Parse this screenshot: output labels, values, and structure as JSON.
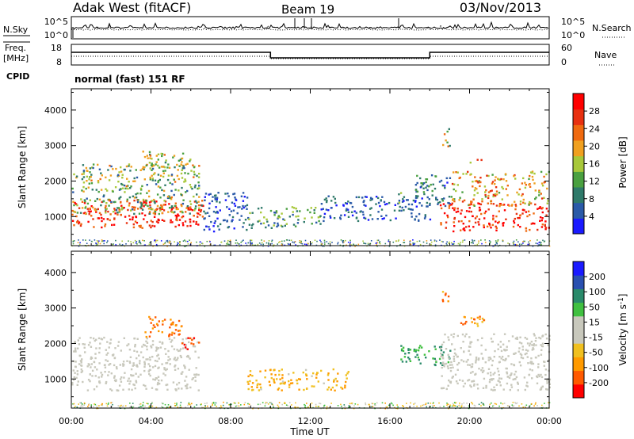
{
  "header": {
    "title": "Adak West (fitACF)",
    "beam": "Beam 19",
    "date": "03/Nov/2013"
  },
  "time_axis": {
    "ticks": [
      "00:00",
      "04:00",
      "08:00",
      "12:00",
      "16:00",
      "20:00",
      "00:00"
    ],
    "label": "Time UT"
  },
  "nsky_panel": {
    "left_label": "N.Sky",
    "left_ticks": [
      "10^5",
      "10^0"
    ],
    "right_label": "N.Search",
    "right_ticks": [
      "10^5",
      "10^0"
    ]
  },
  "freq_panel": {
    "left_label_line1": "Freq.",
    "left_label_line2": "[MHz]",
    "left_ticks": [
      "18",
      "8"
    ],
    "right_label": "Nave",
    "right_ticks": [
      "60",
      "0"
    ]
  },
  "cpid": {
    "label": "CPID",
    "value": "normal (fast) 151 RF"
  },
  "colors": {
    "power_scale": [
      "#1a1aff",
      "#2a5aa8",
      "#2f7a6a",
      "#4aa040",
      "#a8c83a",
      "#f0a020",
      "#f06a10",
      "#e83010",
      "#ff0000"
    ],
    "velocity_scale": [
      "#ff0000",
      "#ff5a00",
      "#ff9a00",
      "#f0c020",
      "#c8c8bc",
      "#c8c8bc",
      "#40c040",
      "#2a8a6a",
      "#2a50b0",
      "#1a1aff"
    ],
    "ground_scatter": "#c8c8bc"
  },
  "chart_data": [
    {
      "type": "heatmap",
      "name": "power",
      "ylabel": "Slant Range [km]",
      "yticks": [
        "1000",
        "2000",
        "3000",
        "4000"
      ],
      "ylim": [
        180,
        4600
      ],
      "xlim": [
        0,
        24
      ],
      "colorbar": {
        "label": "Power [dB]",
        "ticks": [
          "4",
          "8",
          "12",
          "16",
          "20",
          "24",
          "28"
        ],
        "range": [
          0,
          32
        ]
      },
      "echo_regions": [
        {
          "t0": 0.0,
          "t1": 6.6,
          "r0": 700,
          "r1": 1500,
          "value": 28,
          "spread": 6
        },
        {
          "t0": 0.0,
          "t1": 6.4,
          "r0": 1100,
          "r1": 2500,
          "value": 14,
          "spread": 8
        },
        {
          "t0": 3.5,
          "t1": 6.0,
          "r0": 2400,
          "r1": 2900,
          "value": 16,
          "spread": 6
        },
        {
          "t0": 6.5,
          "t1": 8.8,
          "r0": 600,
          "r1": 1700,
          "value": 5,
          "spread": 3
        },
        {
          "t0": 8.8,
          "t1": 12.5,
          "r0": 700,
          "r1": 1300,
          "value": 12,
          "spread": 6
        },
        {
          "t0": 12.5,
          "t1": 18.0,
          "r0": 900,
          "r1": 1600,
          "value": 6,
          "spread": 4
        },
        {
          "t0": 16.2,
          "t1": 16.6,
          "r0": 1400,
          "r1": 1700,
          "value": 14,
          "spread": 6
        },
        {
          "t0": 17.2,
          "t1": 19.0,
          "r0": 1300,
          "r1": 2200,
          "value": 8,
          "spread": 6
        },
        {
          "t0": 18.6,
          "t1": 19.0,
          "r0": 3000,
          "r1": 3500,
          "value": 16,
          "spread": 8
        },
        {
          "t0": 19.8,
          "t1": 20.6,
          "r0": 2500,
          "r1": 2800,
          "value": 22,
          "spread": 6
        },
        {
          "t0": 18.5,
          "t1": 24.0,
          "r0": 600,
          "r1": 1400,
          "value": 28,
          "spread": 6
        },
        {
          "t0": 19.0,
          "t1": 24.0,
          "r0": 1300,
          "r1": 2300,
          "value": 20,
          "spread": 7
        }
      ]
    },
    {
      "type": "heatmap",
      "name": "velocity",
      "ylabel": "Slant Range [km]",
      "yticks": [
        "1000",
        "2000",
        "3000",
        "4000"
      ],
      "ylim": [
        180,
        4600
      ],
      "xlim": [
        0,
        24
      ],
      "colorbar": {
        "label": "Velocity [m s^-1]",
        "ticks": [
          "200",
          "100",
          "50",
          "15",
          "-15",
          "-50",
          "-100",
          "-200"
        ],
        "range": [
          -250,
          250
        ]
      },
      "echo_regions": [
        {
          "t0": 0.0,
          "t1": 6.4,
          "r0": 700,
          "r1": 2200,
          "value": 0,
          "spread": 6
        },
        {
          "t0": 3.5,
          "t1": 5.5,
          "r0": 2200,
          "r1": 2800,
          "value": -120,
          "spread": 60
        },
        {
          "t0": 5.5,
          "t1": 6.5,
          "r0": 1800,
          "r1": 2200,
          "value": -200,
          "spread": 40
        },
        {
          "t0": 8.8,
          "t1": 14.0,
          "r0": 700,
          "r1": 1300,
          "value": -40,
          "spread": 30
        },
        {
          "t0": 16.5,
          "t1": 19.0,
          "r0": 1400,
          "r1": 2000,
          "value": 50,
          "spread": 40
        },
        {
          "t0": 18.6,
          "t1": 19.0,
          "r0": 3200,
          "r1": 3500,
          "value": -100,
          "spread": 80
        },
        {
          "t0": 19.5,
          "t1": 20.7,
          "r0": 2500,
          "r1": 2900,
          "value": -80,
          "spread": 60
        },
        {
          "t0": 18.5,
          "t1": 24.0,
          "r0": 700,
          "r1": 2300,
          "value": 0,
          "spread": 6
        }
      ]
    }
  ]
}
